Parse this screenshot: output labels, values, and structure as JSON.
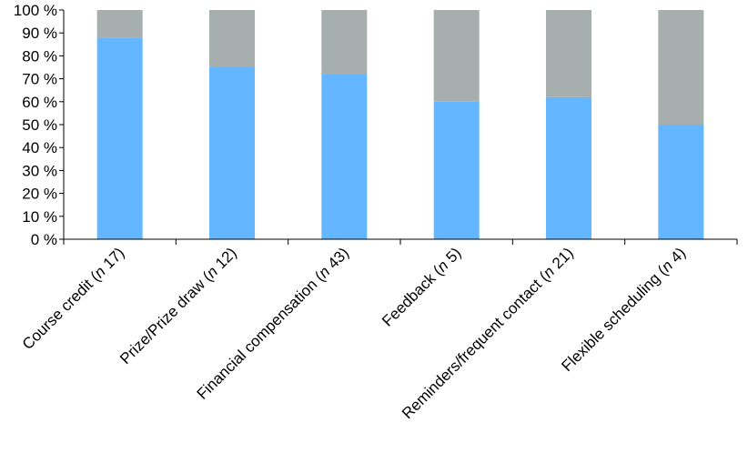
{
  "chart_data": {
    "type": "bar",
    "stacked": true,
    "percent": true,
    "categories": [
      "Course credit (n 17)",
      "Prize/Prize draw (n 12)",
      "Financial compensation (n 43)",
      "Feedback (n 5)",
      "Reminders/frequent contact (n 21)",
      "Flexible scheduling (n 4)"
    ],
    "category_parts": [
      [
        "Course credit (",
        "n",
        " 17)"
      ],
      [
        "Prize/Prize draw (",
        "n",
        " 12)"
      ],
      [
        "Financial compensation (",
        "n",
        " 43)"
      ],
      [
        "Feedback (",
        "n",
        " 5)"
      ],
      [
        "Reminders/frequent contact (",
        "n",
        " 21)"
      ],
      [
        "Flexible scheduling (",
        "n",
        " 4)"
      ]
    ],
    "series": [
      {
        "values": [
          88,
          75,
          72,
          60,
          62,
          50
        ],
        "color": "#63b6ff"
      },
      {
        "values": [
          12,
          25,
          28,
          40,
          38,
          50
        ],
        "color": "#a6aeae"
      }
    ],
    "yticks": [
      "0 %",
      "10 %",
      "20 %",
      "30 %",
      "40 %",
      "50 %",
      "60 %",
      "70 %",
      "80 %",
      "90 %",
      "100 %"
    ],
    "ylim": [
      0,
      100
    ],
    "title": "",
    "xlabel": "",
    "ylabel": "",
    "grid": false,
    "legend": "none"
  }
}
